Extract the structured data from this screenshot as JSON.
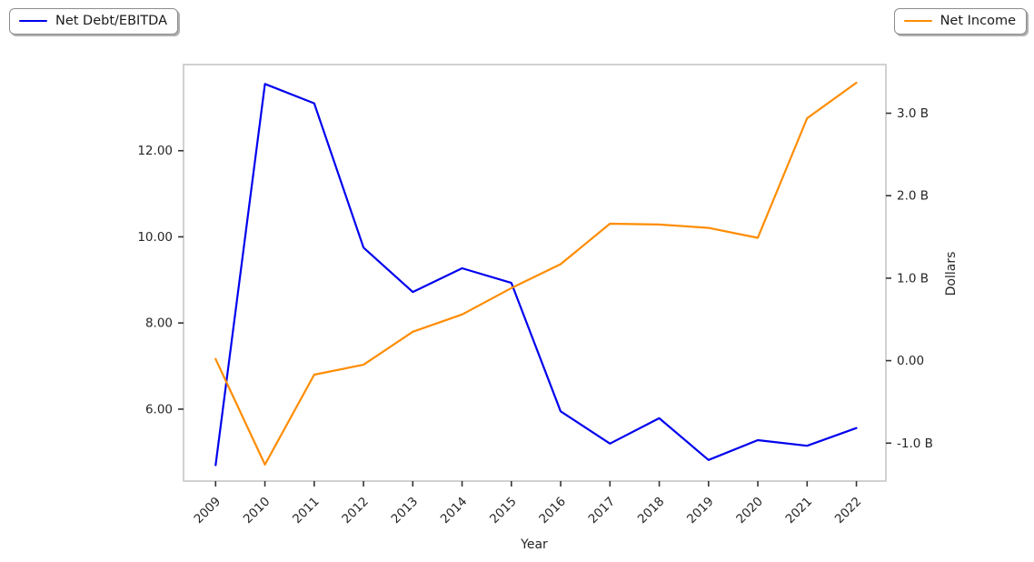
{
  "legends": {
    "left": {
      "label": "Net Debt/EBITDA",
      "color": "#0000ee"
    },
    "right": {
      "label": "Net Income",
      "color": "#ff8c00"
    }
  },
  "colors": {
    "background": "#ffffff",
    "plot_border": "#cccccc",
    "tick": "#333333",
    "text": "#262626"
  },
  "chart_data": {
    "type": "line",
    "title": "",
    "xlabel": "Year",
    "x": [
      2009,
      2010,
      2011,
      2012,
      2013,
      2014,
      2015,
      2016,
      2017,
      2018,
      2019,
      2020,
      2021,
      2022
    ],
    "grid": false,
    "legend_position": [
      "outside upper left",
      "outside upper right"
    ],
    "series": [
      {
        "name": "Net Debt/EBITDA",
        "axis": "left",
        "color": "#0000ee",
        "values": [
          4.7,
          13.55,
          13.1,
          9.75,
          8.72,
          9.27,
          8.93,
          5.95,
          5.2,
          5.79,
          4.82,
          5.28,
          5.15,
          5.56
        ]
      },
      {
        "name": "Net Income",
        "axis": "right",
        "color": "#ff8c00",
        "unit": "billions_usd",
        "values": [
          0.02,
          -1.26,
          -0.17,
          -0.05,
          0.35,
          0.56,
          0.88,
          1.17,
          1.66,
          1.65,
          1.61,
          1.49,
          2.94,
          3.37
        ]
      }
    ],
    "left_axis": {
      "label": "",
      "ticks": [
        6,
        8,
        10,
        12
      ],
      "tick_labels": [
        "6.00",
        "8.00",
        "10.00",
        "12.00"
      ],
      "range": [
        4.33,
        14.0
      ]
    },
    "right_axis": {
      "label": "Dollars",
      "ticks": [
        -1,
        0,
        1,
        2,
        3
      ],
      "tick_labels": [
        "-1.0 B",
        "0.00",
        "1.0 B",
        "2.0 B",
        "3.0 B"
      ],
      "range": [
        -1.46,
        3.59
      ]
    }
  }
}
